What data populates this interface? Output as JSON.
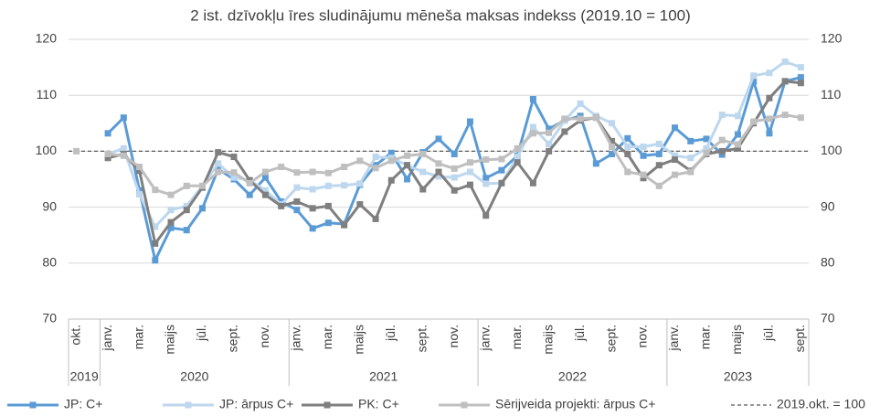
{
  "chart_data": {
    "type": "line",
    "title": "2 ist. dzīvokļu īres sludinājumu mēneša maksas indekss (2019.10 = 100)",
    "categories": [
      "okt.",
      null,
      "janv.",
      null,
      "mar.",
      null,
      "maijs",
      null,
      "jūl.",
      null,
      "sept.",
      null,
      "nov.",
      null,
      "janv.",
      null,
      "mar.",
      null,
      "maijs",
      null,
      "jūl.",
      null,
      "sept.",
      null,
      "nov.",
      null,
      "janv.",
      null,
      "mar.",
      null,
      "maijs",
      null,
      "jūl.",
      null,
      "sept.",
      null,
      "nov.",
      null,
      "janv.",
      null,
      "mar.",
      null,
      "maijs",
      null,
      "jūl.",
      null,
      "sept."
    ],
    "year_groups": [
      {
        "label": "2019",
        "span": 2
      },
      {
        "label": "2020",
        "span": 12
      },
      {
        "label": "2021",
        "span": 12
      },
      {
        "label": "2022",
        "span": 12
      },
      {
        "label": "2023",
        "span": 9
      }
    ],
    "series": [
      {
        "name": "JP: C+",
        "color": "#5b9bd5",
        "values": [
          null,
          null,
          103.2,
          106,
          93,
          80.5,
          86.3,
          85.9,
          89.8,
          96.8,
          95,
          92.2,
          95.3,
          91,
          89.5,
          86.2,
          87.2,
          87,
          94,
          97.5,
          99.7,
          95,
          99.8,
          102.2,
          99.5,
          105.3,
          95.2,
          96.6,
          99.2,
          109.3,
          104,
          105.5,
          106.3,
          97.8,
          99.5,
          102.3,
          99.2,
          99.5,
          104.2,
          101.8,
          102.2,
          99.4,
          103,
          112.5,
          103.2,
          112.5,
          113.2
        ]
      },
      {
        "name": "JP: ārpus C+",
        "color": "#bdd7ee",
        "values": [
          null,
          null,
          99.5,
          100.5,
          92.3,
          86.5,
          89.5,
          90.2,
          93.8,
          97.8,
          95.3,
          94.8,
          93,
          90.5,
          93.5,
          93.2,
          93.8,
          93.9,
          94.2,
          99,
          98.8,
          97.5,
          96.3,
          95.5,
          95.3,
          96.3,
          94.2,
          94.3,
          99,
          104.3,
          101.3,
          105.5,
          108.5,
          106.3,
          105,
          100.8,
          100.8,
          101.3,
          99.2,
          98.8,
          100.5,
          106.5,
          106.3,
          113.5,
          114,
          116,
          115
        ]
      },
      {
        "name": "PK: C+",
        "color": "#7f7f7f",
        "values": [
          null,
          null,
          98.8,
          99.5,
          96.5,
          83.5,
          87.3,
          89.5,
          93.5,
          99.8,
          99,
          94.8,
          92.2,
          90.2,
          91,
          89.8,
          90.2,
          86.8,
          90.5,
          87.9,
          94.8,
          97.5,
          93.2,
          96.3,
          93,
          94,
          88.5,
          94.3,
          98,
          94.3,
          100,
          103.5,
          105.5,
          106,
          101.8,
          99.5,
          95.2,
          97.5,
          98.5,
          96.5,
          99.5,
          100,
          100.5,
          105,
          109.5,
          112.5,
          112.2
        ]
      },
      {
        "name": "Sērijveida projekti: ārpus C+",
        "color": "#bfbfbf",
        "values": [
          100,
          null,
          99.5,
          99.2,
          97.2,
          93.1,
          92.2,
          93.8,
          93.8,
          96.3,
          96.2,
          94.3,
          96.3,
          97.2,
          96.2,
          96.3,
          96.1,
          97.2,
          98.3,
          97,
          98.3,
          99.2,
          99.5,
          97.8,
          96.9,
          98,
          98.5,
          98.6,
          100.5,
          103.2,
          103.3,
          105.8,
          105.8,
          106,
          100.8,
          96.3,
          95.8,
          93.8,
          95.8,
          96.3,
          99.7,
          102,
          101.2,
          105.3,
          105.8,
          106.5,
          106
        ]
      }
    ],
    "reference_line": {
      "name": "2019.okt. = 100",
      "value": 100,
      "color": "#595959"
    },
    "ylim": [
      70,
      120
    ],
    "yticks": [
      70,
      80,
      90,
      100,
      110,
      120
    ],
    "y2lim": [
      70,
      120
    ],
    "y2ticks": [
      70,
      80,
      90,
      100,
      110,
      120
    ],
    "grid": true
  }
}
